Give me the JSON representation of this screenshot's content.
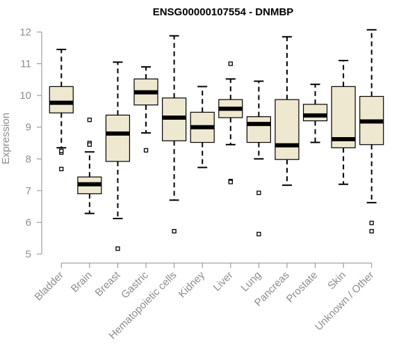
{
  "chart_data": {
    "type": "box",
    "title": "ENSG00000107554 - DNMBP",
    "xlabel": "",
    "ylabel": "Expression",
    "ylim": [
      5,
      12
    ],
    "yticks": [
      5,
      6,
      7,
      8,
      9,
      10,
      11,
      12
    ],
    "grid": false,
    "legend": "none",
    "colors": {
      "box_fill": "#efe8d0",
      "box_stroke": "#000000",
      "median": "#000000",
      "axis": "#8c8c8c"
    },
    "categories": [
      "Bladder",
      "Brain",
      "Breast",
      "Gastric",
      "Hematopoietic cells",
      "Kidney",
      "Liver",
      "Lung",
      "Pancreas",
      "Prostate",
      "Skin",
      "Unknown / Other"
    ],
    "boxes": [
      {
        "category": "Bladder",
        "min": 8.35,
        "q1": 9.45,
        "median": 9.77,
        "q3": 10.28,
        "max": 11.45,
        "outliers": [
          8.2,
          8.25,
          7.68
        ]
      },
      {
        "category": "Brain",
        "min": 6.28,
        "q1": 6.9,
        "median": 7.2,
        "q3": 7.43,
        "max": 8.22,
        "outliers": [
          9.23,
          8.5,
          8.45
        ]
      },
      {
        "category": "Breast",
        "min": 6.12,
        "q1": 7.92,
        "median": 8.8,
        "q3": 9.38,
        "max": 11.05,
        "outliers": [
          5.17
        ]
      },
      {
        "category": "Gastric",
        "min": 8.82,
        "q1": 9.7,
        "median": 10.1,
        "q3": 10.52,
        "max": 10.9,
        "outliers": [
          8.27
        ]
      },
      {
        "category": "Hematopoietic cells",
        "min": 6.7,
        "q1": 8.57,
        "median": 9.3,
        "q3": 9.92,
        "max": 11.88,
        "outliers": [
          5.72
        ]
      },
      {
        "category": "Kidney",
        "min": 7.73,
        "q1": 8.52,
        "median": 9.0,
        "q3": 9.47,
        "max": 10.28,
        "outliers": []
      },
      {
        "category": "Liver",
        "min": 8.45,
        "q1": 9.3,
        "median": 9.58,
        "q3": 9.87,
        "max": 10.52,
        "outliers": [
          11.0,
          7.3,
          7.27
        ]
      },
      {
        "category": "Lung",
        "min": 8.0,
        "q1": 8.52,
        "median": 9.1,
        "q3": 9.33,
        "max": 10.45,
        "outliers": [
          6.93,
          5.63
        ]
      },
      {
        "category": "Pancreas",
        "min": 7.17,
        "q1": 7.98,
        "median": 8.43,
        "q3": 9.87,
        "max": 11.85,
        "outliers": []
      },
      {
        "category": "Prostate",
        "min": 8.52,
        "q1": 9.2,
        "median": 9.37,
        "q3": 9.72,
        "max": 10.35,
        "outliers": []
      },
      {
        "category": "Skin",
        "min": 7.2,
        "q1": 8.35,
        "median": 8.62,
        "q3": 10.28,
        "max": 11.1,
        "outliers": []
      },
      {
        "category": "Unknown / Other",
        "min": 6.62,
        "q1": 8.45,
        "median": 9.18,
        "q3": 9.97,
        "max": 12.07,
        "outliers": [
          5.98,
          5.72
        ]
      }
    ]
  }
}
